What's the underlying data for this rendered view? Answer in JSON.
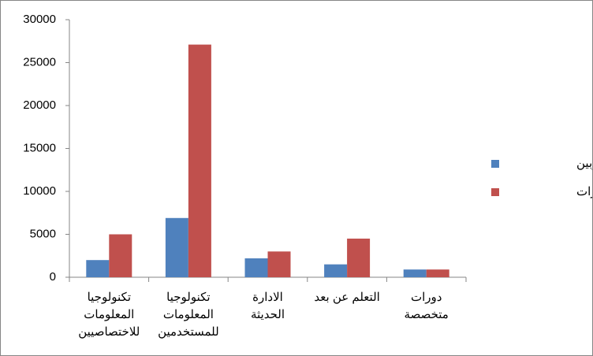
{
  "chart_data": {
    "type": "bar",
    "categories": [
      "تكنولوجيا المعلومات للاختصاصيين",
      "تكنولوجيا المعلومات للمستخدمين",
      "الادارة الحديثة",
      "التعلم عن بعد",
      "دورات متخصصة"
    ],
    "series": [
      {
        "name": "عدد المتدربين",
        "color": "#4f81bd",
        "values": [
          2000,
          6900,
          2200,
          1500,
          900
        ]
      },
      {
        "name": "عدد الدورات",
        "color": "#c0504d",
        "values": [
          5000,
          27100,
          3000,
          4500,
          900
        ]
      }
    ],
    "ylim": [
      0,
      30000
    ],
    "yticks": [
      0,
      5000,
      10000,
      15000,
      20000,
      25000,
      30000
    ]
  }
}
